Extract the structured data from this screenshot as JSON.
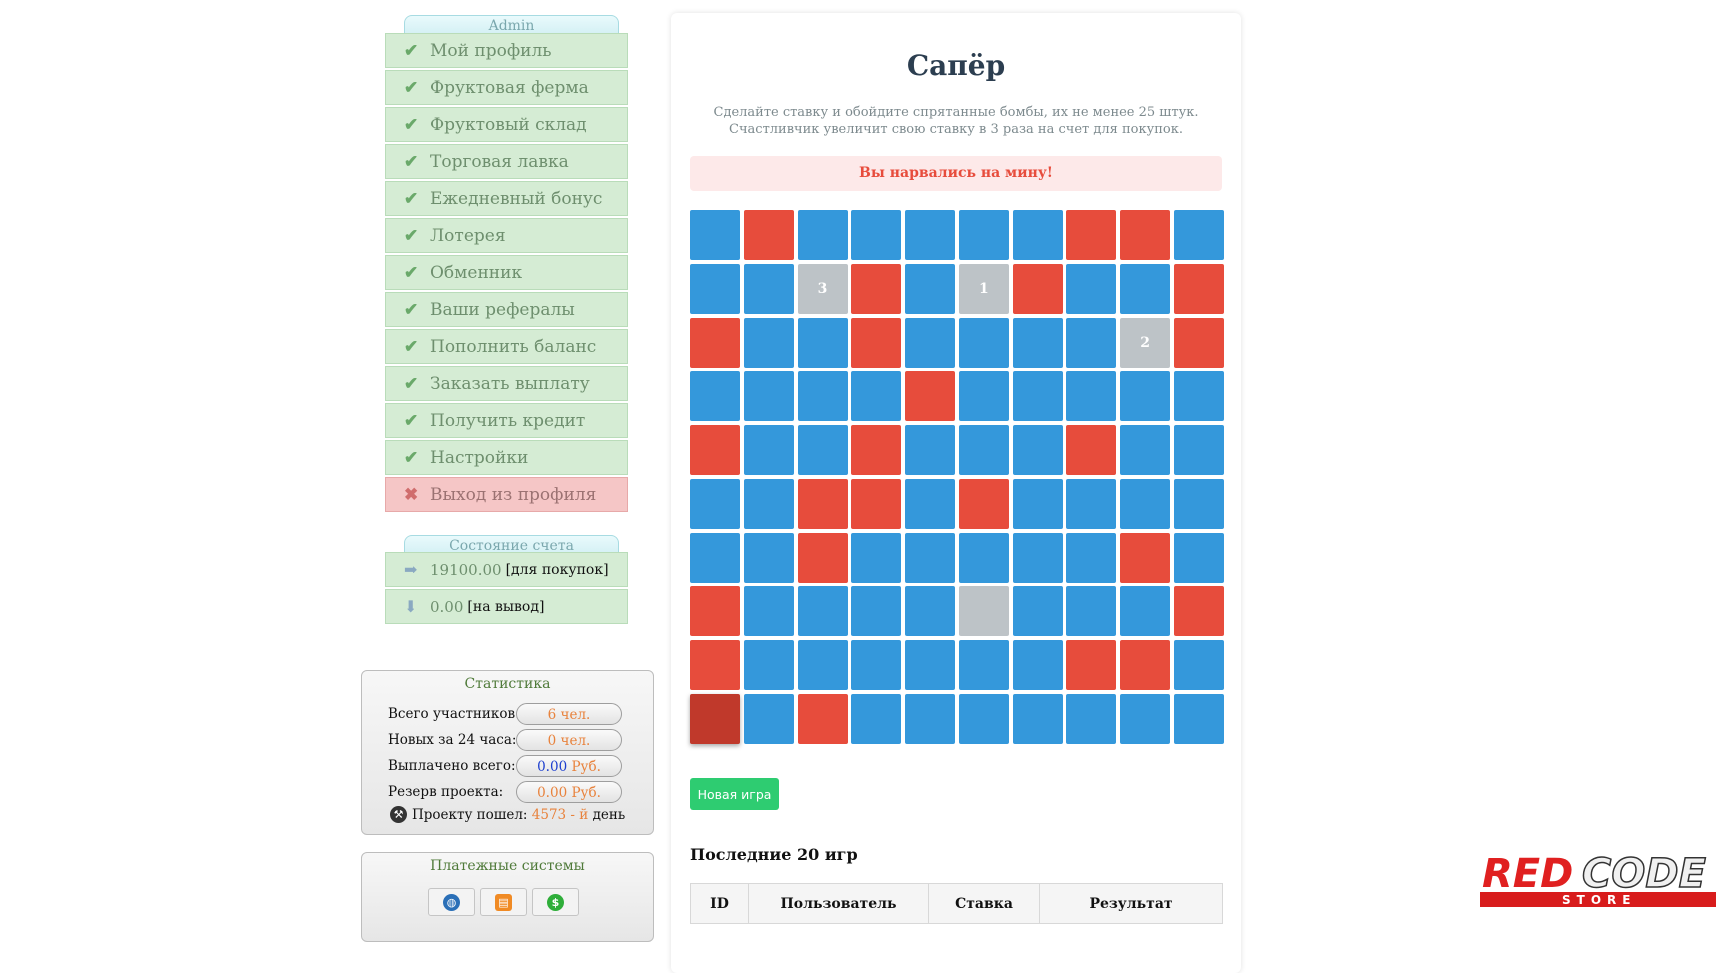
{
  "sidebar": {
    "user_tab": "Admin",
    "menu": [
      {
        "label": "Мой профиль",
        "icon": "check-icon"
      },
      {
        "label": "Фруктовая ферма",
        "icon": "check-icon"
      },
      {
        "label": "Фруктовый склад",
        "icon": "check-icon"
      },
      {
        "label": "Торговая лавка",
        "icon": "check-icon"
      },
      {
        "label": "Ежедневный бонус",
        "icon": "check-icon"
      },
      {
        "label": "Лотерея",
        "icon": "check-icon"
      },
      {
        "label": "Обменник",
        "icon": "check-icon"
      },
      {
        "label": "Ваши рефералы",
        "icon": "check-icon"
      },
      {
        "label": "Пополнить баланс",
        "icon": "check-icon"
      },
      {
        "label": "Заказать выплату",
        "icon": "check-icon"
      },
      {
        "label": "Получить кредит",
        "icon": "check-icon"
      },
      {
        "label": "Настройки",
        "icon": "check-icon"
      },
      {
        "label": "Выход из профиля",
        "icon": "cross-icon"
      }
    ],
    "account_tab": "Состояние счета",
    "balances": [
      {
        "value": "19100.00",
        "note": "[для покупок]",
        "icon": "arrow-right-icon"
      },
      {
        "value": "0.00",
        "note": "[на вывод]",
        "icon": "arrow-down-icon"
      }
    ],
    "stats": {
      "title": "Статистика",
      "rows": [
        {
          "label": "Всего участников:",
          "value": "6",
          "unit": "чел."
        },
        {
          "label": "Новых за 24 часа:",
          "value": "0",
          "unit": "чел."
        },
        {
          "label": "Выплачено всего:",
          "value": "0.00",
          "unit": "Руб."
        },
        {
          "label": "Резерв проекта:",
          "value": "0.00",
          "unit": "Руб."
        }
      ],
      "project_prefix": "Проекту пошел:",
      "project_days": "4573 - й",
      "project_suffix": "день"
    },
    "payments": {
      "title": "Платежные системы",
      "icons": [
        "webmoney-icon",
        "wallet-icon",
        "dollar-icon"
      ]
    }
  },
  "game": {
    "title": "Сапёр",
    "desc_line1": "Сделайте ставку и обойдите спрятанные бомбы, их не менее 25 штук.",
    "desc_line2": "Счастливчик увеличит свою ставку в 3 раза на счет для покупок.",
    "alert": "Вы нарвались на мину!",
    "board": [
      [
        "b",
        "m",
        "b",
        "b",
        "b",
        "b",
        "b",
        "m",
        "m",
        "b"
      ],
      [
        "b",
        "b",
        "r3",
        "m",
        "b",
        "r1",
        "m",
        "b",
        "b",
        "m"
      ],
      [
        "m",
        "b",
        "b",
        "m",
        "b",
        "b",
        "b",
        "b",
        "r2",
        "m"
      ],
      [
        "b",
        "b",
        "b",
        "b",
        "m",
        "b",
        "b",
        "b",
        "b",
        "b"
      ],
      [
        "m",
        "b",
        "b",
        "m",
        "b",
        "b",
        "b",
        "m",
        "b",
        "b"
      ],
      [
        "b",
        "b",
        "m",
        "m",
        "b",
        "m",
        "b",
        "b",
        "b",
        "b"
      ],
      [
        "b",
        "b",
        "m",
        "b",
        "b",
        "b",
        "b",
        "b",
        "m",
        "b"
      ],
      [
        "m",
        "b",
        "b",
        "b",
        "b",
        "r",
        "b",
        "b",
        "b",
        "m"
      ],
      [
        "m",
        "b",
        "b",
        "b",
        "b",
        "b",
        "b",
        "m",
        "m",
        "b"
      ],
      [
        "x",
        "b",
        "m",
        "b",
        "b",
        "b",
        "b",
        "b",
        "b",
        "b"
      ]
    ],
    "new_game": "Новая игра",
    "history_title": "Последние 20 игр",
    "columns": [
      "ID",
      "Пользователь",
      "Ставка",
      "Результат"
    ]
  },
  "colors": {
    "cell": "#3498db",
    "mine": "#e74c3c",
    "revealed": "#bdc3c7",
    "hit": "#c0392b",
    "button": "#2ecc71"
  },
  "logo": {
    "text1": "RED",
    "text2": "CODE",
    "text3": "STORE"
  }
}
